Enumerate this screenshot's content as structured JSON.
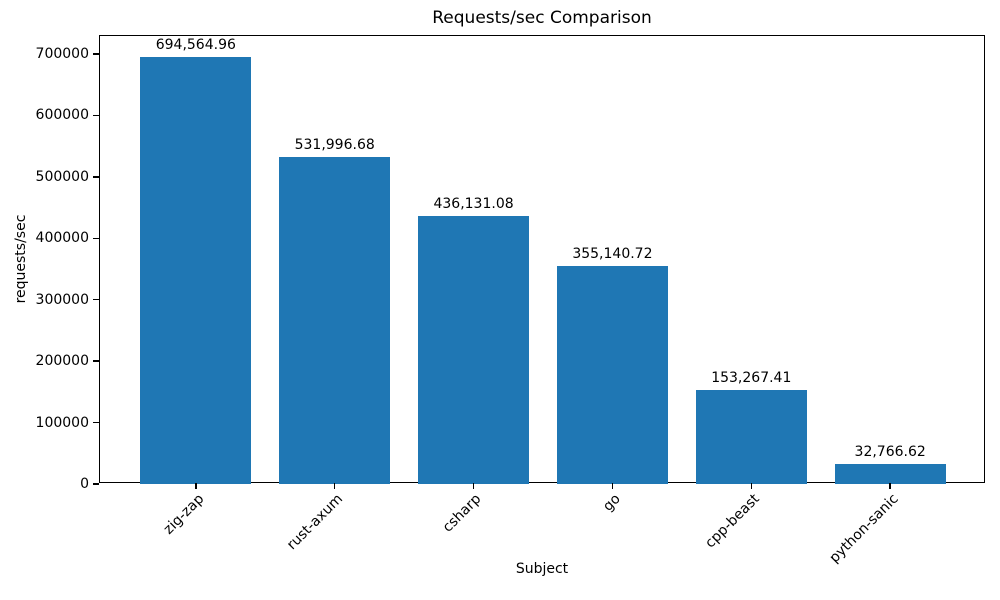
{
  "chart_data": {
    "type": "bar",
    "title": "Requests/sec Comparison",
    "xlabel": "Subject",
    "ylabel": "requests/sec",
    "categories": [
      "zig-zap",
      "rust-axum",
      "csharp",
      "go",
      "cpp-beast",
      "python-sanic"
    ],
    "values": [
      694564.96,
      531996.68,
      436131.08,
      355140.72,
      153267.41,
      32766.62
    ],
    "value_labels": [
      "694,564.96",
      "531,996.68",
      "436,131.08",
      "355,140.72",
      "153,267.41",
      "32,766.62"
    ],
    "yticks": [
      0,
      100000,
      200000,
      300000,
      400000,
      500000,
      600000,
      700000
    ],
    "ytick_labels": [
      "0",
      "100000",
      "200000",
      "300000",
      "400000",
      "500000",
      "600000",
      "700000"
    ],
    "ylim": [
      0,
      729300
    ],
    "bar_color": "#1f77b4",
    "grid": false,
    "legend_position": "none",
    "x_tick_rotation_deg": 45
  }
}
